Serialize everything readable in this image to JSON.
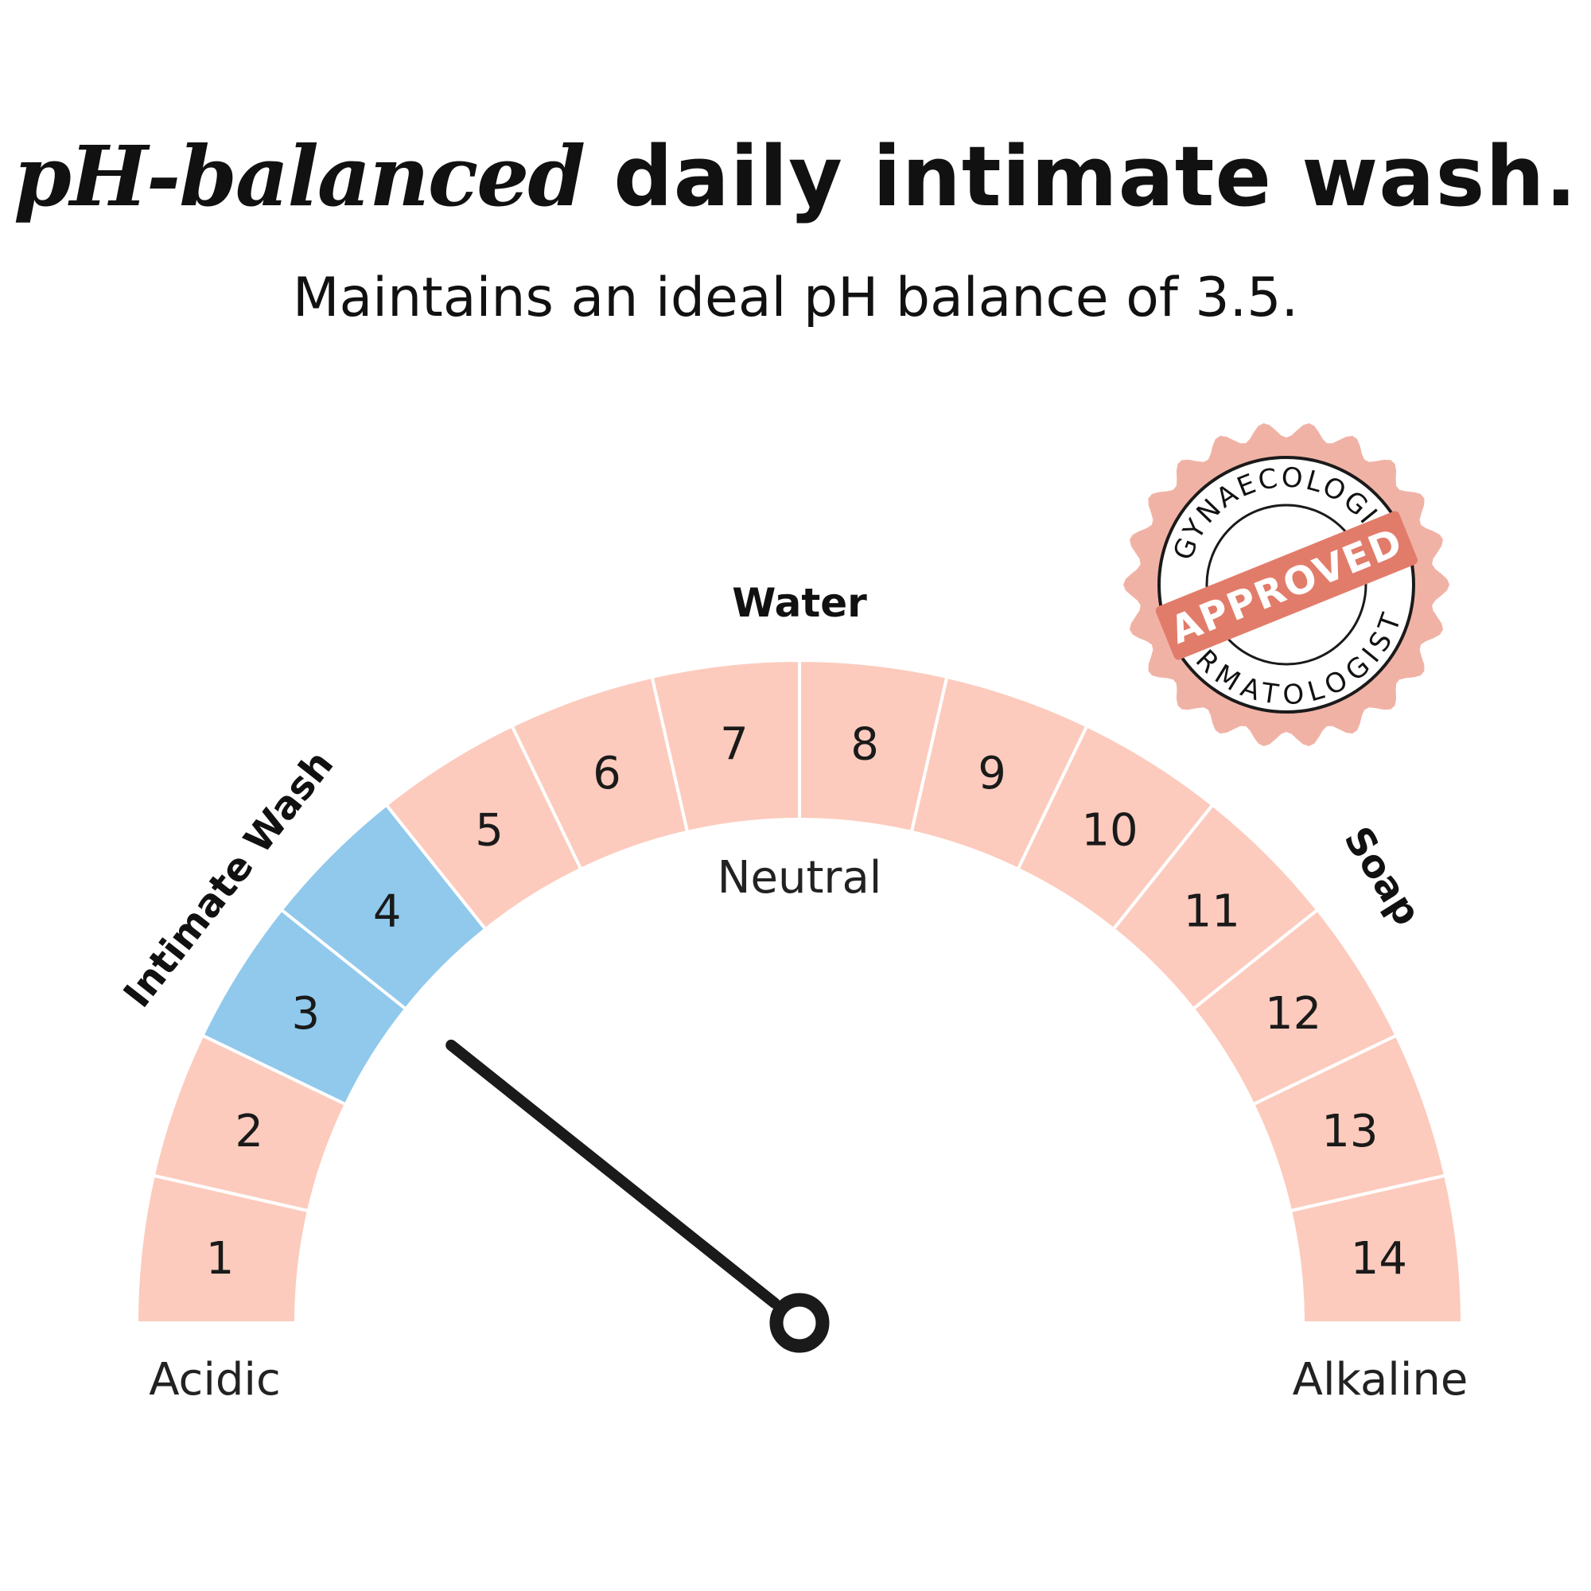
{
  "headline": {
    "emphasis": "pH-balanced",
    "rest": " daily intimate wash."
  },
  "subheadline": "Maintains an ideal pH balance of 3.5.",
  "gauge": {
    "scale": [
      1,
      2,
      3,
      4,
      5,
      6,
      7,
      8,
      9,
      10,
      11,
      12,
      13,
      14
    ],
    "highlighted": [
      3,
      4
    ],
    "needle_value": 3.5,
    "neutral_label": "Neutral",
    "left_end_label": "Acidic",
    "right_end_label": "Alkaline",
    "callouts": {
      "intimate_wash": "Intimate Wash",
      "water": "Water",
      "soap": "Soap"
    },
    "colors": {
      "segment": "#fccbbd",
      "highlight": "#90c9ec",
      "needle": "#1a1a1a"
    }
  },
  "badge": {
    "top_text": "GYNAECOLOGIST",
    "bottom_text": "DERMATOLOGIST",
    "ribbon_text": "APPROVED",
    "colors": {
      "outer": "#f1b2a6",
      "ribbon": "#e27c6a"
    }
  }
}
